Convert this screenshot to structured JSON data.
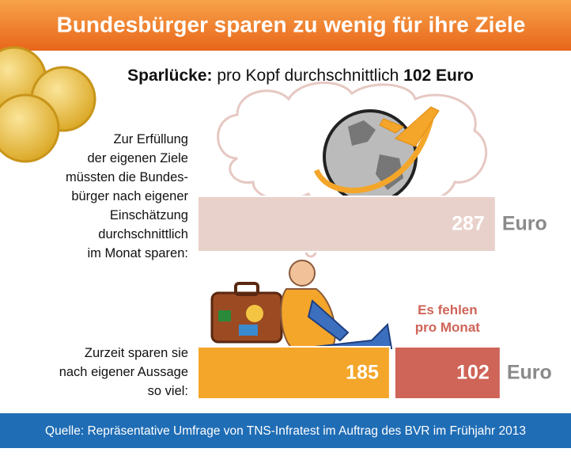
{
  "chart_data": {
    "type": "bar",
    "title": "Bundesbürger sparen zu wenig für ihre Ziele",
    "subtitle": {
      "bold": "Sparlücke:",
      "text": "pro Kopf durchschnittlich",
      "highlight": "102 Euro"
    },
    "categories": [
      "Zur Erfüllung\nder eigenen Ziele\nmüssten die Bundes-\nbürger nach eigener\nEinschätzung\ndurchschnittlich\nim Monat sparen:",
      "Zurzeit sparen sie\nnach eigener Aussage\nso viel:"
    ],
    "series": [
      {
        "colors": [
          "#e9d1cb",
          "#f4a62a"
        ],
        "values": [
          287,
          185
        ]
      },
      {
        "name": "Es fehlen\npro Monat",
        "color": "#cf6458",
        "values": [
          null,
          102
        ]
      }
    ],
    "unit": "Euro",
    "source": "Quelle: Repräsentative Umfrage von TNS-Infratest im Auftrag des BVR im Frühjahr 2013"
  }
}
